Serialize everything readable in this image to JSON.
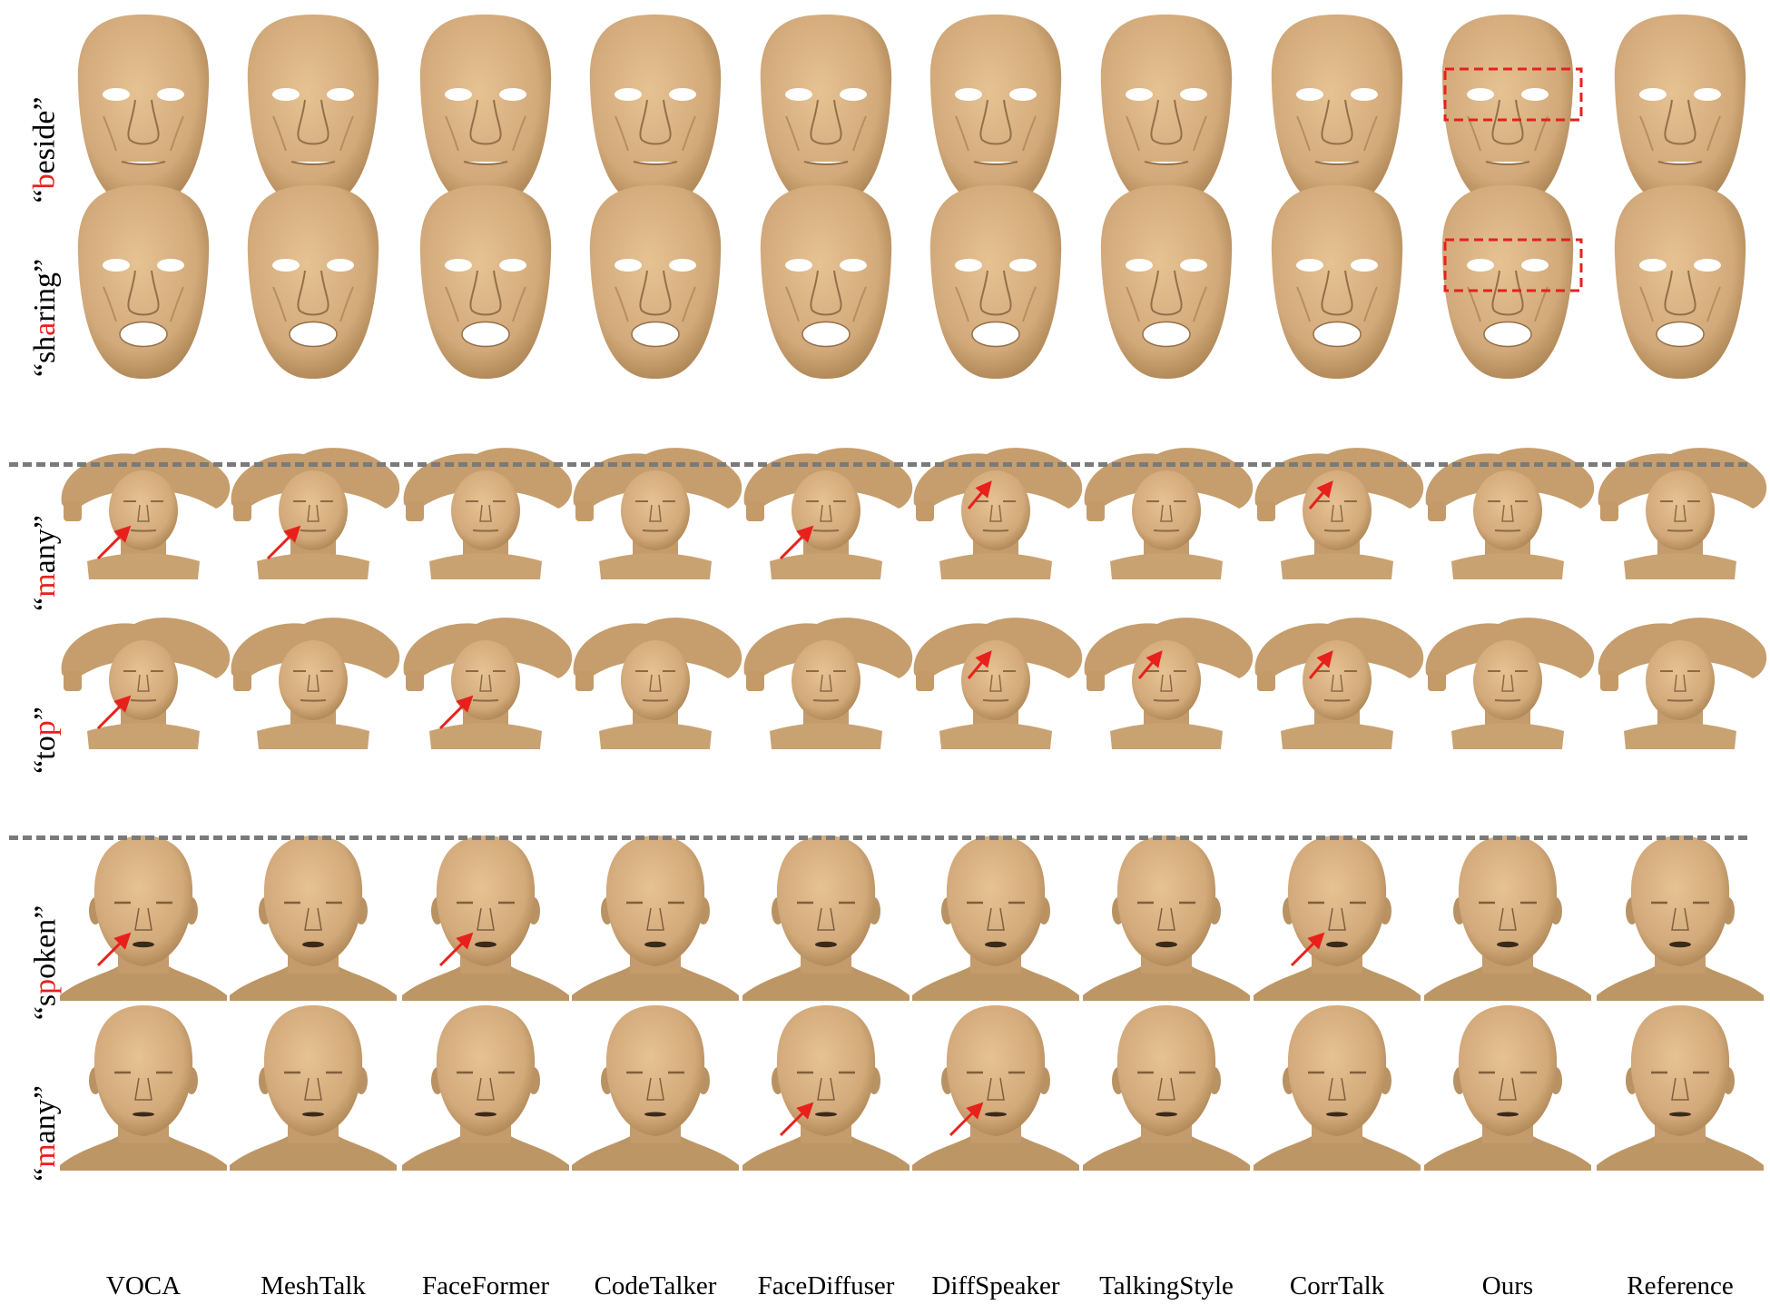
{
  "columns": [
    "VOCA",
    "MeshTalk",
    "FaceFormer",
    "CodeTalker",
    "FaceDiffuser",
    "DiffSpeaker",
    "TalkingStyle",
    "CorrTalk",
    "Ours",
    "Reference"
  ],
  "rows": [
    {
      "word_open": "“",
      "word_red": "b",
      "word_rest": "eside”",
      "mesh": "mask",
      "mouth_open": 0.25,
      "arrows": [],
      "box_col": 8
    },
    {
      "word_open": "“sh",
      "word_red": "a",
      "word_rest": "ring”",
      "mesh": "mask",
      "mouth_open": 0.85,
      "arrows": [],
      "box_col": 8
    },
    {
      "word_open": "“",
      "word_red": "m",
      "word_rest": "any”",
      "mesh": "head_hair",
      "mouth_open": 0.1,
      "arrows": [
        0,
        1,
        4,
        5,
        7
      ],
      "box_col": null
    },
    {
      "word_open": "“to",
      "word_red": "p",
      "word_rest": "”",
      "mesh": "head_hair",
      "mouth_open": 0.1,
      "arrows": [
        0,
        2,
        5,
        6,
        7
      ],
      "box_col": null
    },
    {
      "word_open": "“s",
      "word_red": "p",
      "word_rest": "oken”",
      "mesh": "bald_head",
      "mouth_open": 0.35,
      "arrows": [
        0,
        2,
        7
      ],
      "box_col": null
    },
    {
      "word_open": "“",
      "word_red": "m",
      "word_rest": "any”",
      "mesh": "bald_head",
      "mouth_open": 0.2,
      "arrows": [
        4,
        5
      ],
      "box_col": null
    }
  ],
  "style": {
    "mesh_color": "#d2a97a",
    "arrow_color": "#e8201c",
    "box_color": "#e8201c",
    "divider_color": "#7a7a7a"
  }
}
